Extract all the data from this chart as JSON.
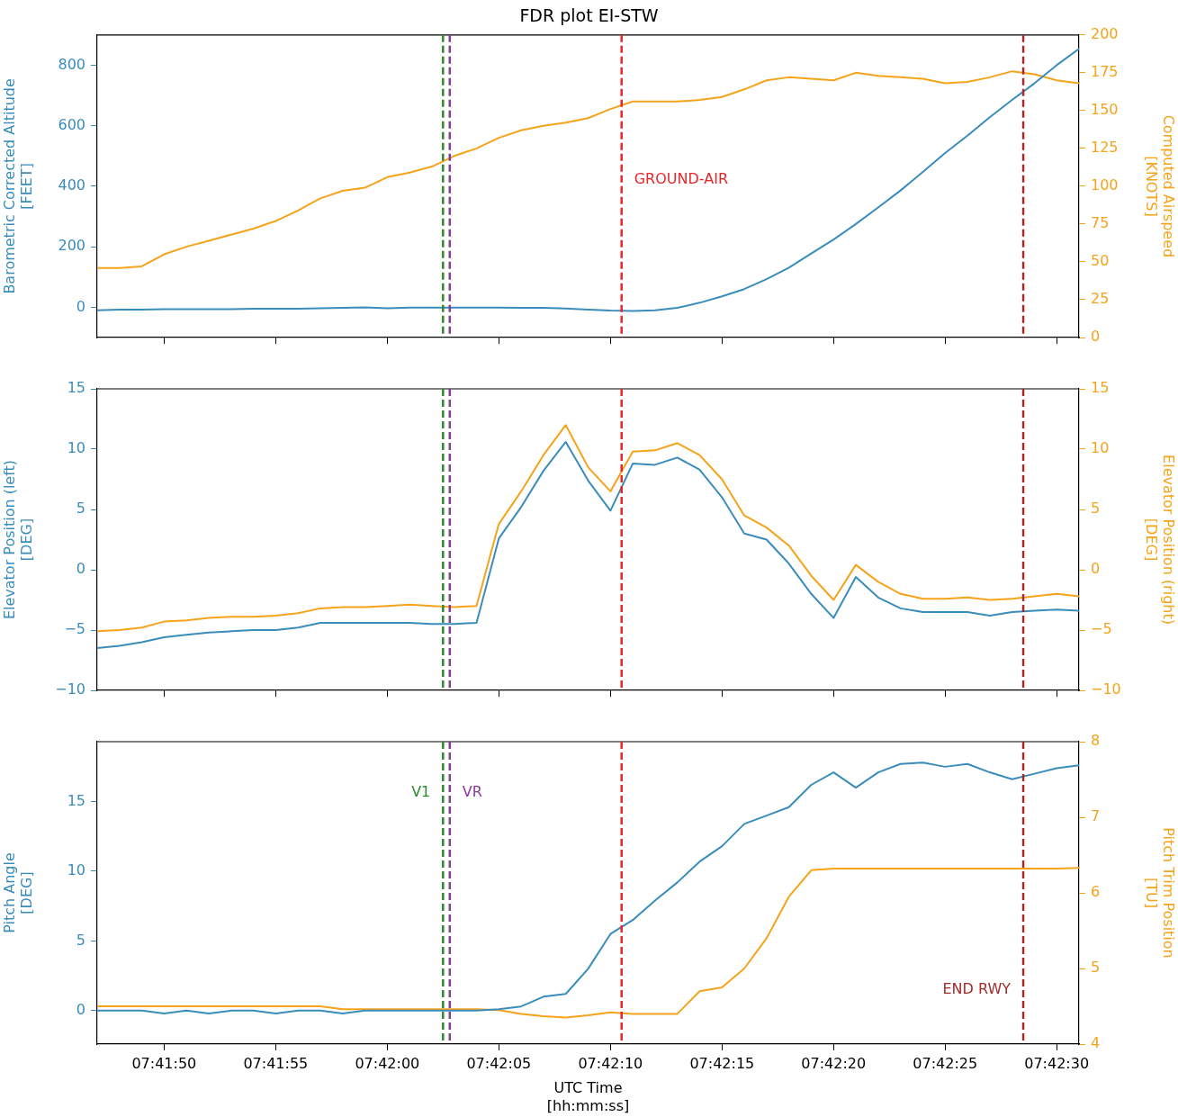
{
  "chart_data": [
    {
      "type": "line",
      "title": "FDR plot EI-STW",
      "ylabel": "Barometric Corrected Altitude\n[FEET]",
      "y2label": "Computed Airspeed\n[KNOTS]",
      "tick_labels": "y",
      "x": [
        7.696389,
        7.696667,
        7.696944,
        7.697222,
        7.6975,
        7.697778,
        7.698056,
        7.698333,
        7.698611,
        7.698889,
        7.699167,
        7.699444,
        7.699722,
        7.7,
        7.700278,
        7.700556,
        7.700833,
        7.701111,
        7.701389,
        7.701667,
        7.701944,
        7.702222,
        7.7025,
        7.702778,
        7.703056,
        7.703333,
        7.703611,
        7.703889,
        7.704167,
        7.704444,
        7.704722,
        7.705,
        7.705278,
        7.705556,
        7.705833,
        7.706111,
        7.706389,
        7.706667,
        7.706944,
        7.707222,
        7.7075,
        7.707778,
        7.708056,
        7.708333,
        7.708611
      ],
      "xlim": [
        7.696389,
        7.708611
      ],
      "xticks": [
        {
          "value": 7.697222,
          "label": null
        },
        {
          "value": 7.698611,
          "label": null
        },
        {
          "value": 7.7,
          "label": null
        },
        {
          "value": 7.701389,
          "label": null
        },
        {
          "value": 7.702778,
          "label": null
        },
        {
          "value": 7.704167,
          "label": null
        },
        {
          "value": 7.705556,
          "label": null
        },
        {
          "value": 7.706944,
          "label": null
        },
        {
          "value": 7.708333,
          "label": null
        }
      ],
      "ylim": [
        -100,
        900
      ],
      "yticks": [
        0,
        200,
        400,
        600,
        800
      ],
      "y2lim": [
        0,
        200
      ],
      "y2ticks": [
        0,
        25,
        50,
        75,
        100,
        125,
        150,
        175,
        200
      ],
      "series": [
        {
          "color": "#3a8dba",
          "values": [
            -10,
            -8,
            -8,
            -6,
            -6,
            -6,
            -6,
            -5,
            -5,
            -5,
            -3,
            -2,
            0,
            -3,
            -1,
            -1,
            -1,
            -1,
            -1,
            -2,
            -2,
            -4,
            -8,
            -11,
            -12,
            -10,
            -2,
            15,
            36,
            60,
            93,
            131,
            178,
            224,
            275,
            330,
            386,
            447,
            510,
            567,
            628,
            685,
            740,
            800,
            854
          ]
        },
        {
          "color": "#f5a31a",
          "axis": "y2",
          "values": [
            46,
            46,
            47,
            55,
            60,
            64,
            68,
            72,
            77,
            84,
            92,
            97,
            99,
            106,
            109,
            113,
            120,
            125,
            132,
            137,
            140,
            142,
            145,
            151,
            156,
            156,
            156,
            157,
            159,
            164,
            170,
            172,
            171,
            170,
            175,
            173,
            172,
            171,
            168,
            169,
            172,
            176,
            174,
            170,
            168
          ]
        }
      ],
      "ref_lines": [
        {
          "axis": "x",
          "value": 7.700694,
          "color": "#2e8b2e",
          "line_style": "dashed"
        },
        {
          "axis": "x",
          "value": 7.700778,
          "color": "#8b3a9a",
          "line_style": "dashed"
        },
        {
          "axis": "x",
          "value": 7.702917,
          "label": "GROUND-AIR",
          "color": "#e8262a",
          "line_style": "dashed"
        },
        {
          "axis": "x",
          "value": 7.707917,
          "color": "#a52a2a",
          "line_style": "dashed"
        }
      ]
    },
    {
      "type": "line",
      "ylabel": "Elevator Position (left)\n[DEG]",
      "y2label": "Elevator Position (right)\n[DEG]",
      "tick_labels": "y",
      "x": [
        7.696389,
        7.696667,
        7.696944,
        7.697222,
        7.6975,
        7.697778,
        7.698056,
        7.698333,
        7.698611,
        7.698889,
        7.699167,
        7.699444,
        7.699722,
        7.7,
        7.700278,
        7.700556,
        7.700833,
        7.701111,
        7.701389,
        7.701667,
        7.701944,
        7.702222,
        7.7025,
        7.702778,
        7.703056,
        7.703333,
        7.703611,
        7.703889,
        7.704167,
        7.704444,
        7.704722,
        7.705,
        7.705278,
        7.705556,
        7.705833,
        7.706111,
        7.706389,
        7.706667,
        7.706944,
        7.707222,
        7.7075,
        7.707778,
        7.708056,
        7.708333,
        7.708611
      ],
      "xlim": [
        7.696389,
        7.708611
      ],
      "xticks": [
        {
          "value": 7.697222,
          "label": null
        },
        {
          "value": 7.698611,
          "label": null
        },
        {
          "value": 7.7,
          "label": null
        },
        {
          "value": 7.701389,
          "label": null
        },
        {
          "value": 7.702778,
          "label": null
        },
        {
          "value": 7.704167,
          "label": null
        },
        {
          "value": 7.705556,
          "label": null
        },
        {
          "value": 7.706944,
          "label": null
        },
        {
          "value": 7.708333,
          "label": null
        }
      ],
      "ylim": [
        -10,
        15
      ],
      "yticks": [
        {
          "value": -10,
          "label": "−10"
        },
        {
          "value": -5,
          "label": "−5"
        },
        0,
        5,
        10,
        15
      ],
      "y2lim": [
        -10,
        15
      ],
      "y2ticks": [
        {
          "value": -10,
          "label": "−10"
        },
        {
          "value": -5,
          "label": "−5"
        },
        0,
        5,
        10,
        15
      ],
      "series": [
        {
          "color": "#3a8dba",
          "values": [
            -6.5,
            -6.3,
            -6.0,
            -5.6,
            -5.4,
            -5.2,
            -5.1,
            -5.0,
            -5.0,
            -4.8,
            -4.4,
            -4.4,
            -4.4,
            -4.4,
            -4.4,
            -4.5,
            -4.5,
            -4.4,
            2.6,
            5.2,
            8.2,
            10.6,
            7.4,
            4.9,
            8.8,
            8.7,
            9.3,
            8.3,
            6.0,
            3.0,
            2.5,
            0.5,
            -2.0,
            -4.0,
            -0.6,
            -2.3,
            -3.2,
            -3.5,
            -3.5,
            -3.5,
            -3.8,
            -3.5,
            -3.4,
            -3.3,
            -3.4
          ]
        },
        {
          "color": "#f5a31a",
          "axis": "y2",
          "values": [
            -5.1,
            -5.0,
            -4.8,
            -4.3,
            -4.2,
            -4.0,
            -3.9,
            -3.9,
            -3.8,
            -3.6,
            -3.2,
            -3.1,
            -3.1,
            -3.0,
            -2.9,
            -3.0,
            -3.1,
            -3.0,
            3.8,
            6.5,
            9.5,
            12.0,
            8.5,
            6.5,
            9.8,
            9.9,
            10.5,
            9.5,
            7.5,
            4.5,
            3.5,
            2.0,
            -0.5,
            -2.5,
            0.4,
            -1.0,
            -2.0,
            -2.4,
            -2.4,
            -2.3,
            -2.5,
            -2.4,
            -2.2,
            -2.0,
            -2.2
          ]
        }
      ],
      "ref_lines": [
        {
          "axis": "x",
          "value": 7.700694,
          "color": "#2e8b2e",
          "line_style": "dashed"
        },
        {
          "axis": "x",
          "value": 7.700778,
          "color": "#8b3a9a",
          "line_style": "dashed"
        },
        {
          "axis": "x",
          "value": 7.702917,
          "color": "#e8262a",
          "line_style": "dashed"
        },
        {
          "axis": "x",
          "value": 7.707917,
          "color": "#a52a2a",
          "line_style": "dashed"
        }
      ]
    },
    {
      "type": "line",
      "xlabel": "UTC Time\n[hh:mm:ss]",
      "ylabel": "Pitch Angle\n[DEG]",
      "y2label": "Pitch Trim Position\n[TU]",
      "x": [
        7.696389,
        7.696667,
        7.696944,
        7.697222,
        7.6975,
        7.697778,
        7.698056,
        7.698333,
        7.698611,
        7.698889,
        7.699167,
        7.699444,
        7.699722,
        7.7,
        7.700278,
        7.700556,
        7.700833,
        7.701111,
        7.701389,
        7.701667,
        7.701944,
        7.702222,
        7.7025,
        7.702778,
        7.703056,
        7.703333,
        7.703611,
        7.703889,
        7.704167,
        7.704444,
        7.704722,
        7.705,
        7.705278,
        7.705556,
        7.705833,
        7.706111,
        7.706389,
        7.706667,
        7.706944,
        7.707222,
        7.7075,
        7.707778,
        7.708056,
        7.708333,
        7.708611
      ],
      "xlim": [
        7.696389,
        7.708611
      ],
      "xticks": [
        {
          "value": 7.697222,
          "label": "07:41:50"
        },
        {
          "value": 7.698611,
          "label": "07:41:55"
        },
        {
          "value": 7.7,
          "label": "07:42:00"
        },
        {
          "value": 7.701389,
          "label": "07:42:05"
        },
        {
          "value": 7.702778,
          "label": "07:42:10"
        },
        {
          "value": 7.704167,
          "label": "07:42:15"
        },
        {
          "value": 7.705556,
          "label": "07:42:20"
        },
        {
          "value": 7.706944,
          "label": "07:42:25"
        },
        {
          "value": 7.708333,
          "label": "07:42:30"
        }
      ],
      "ylim": [
        -2.4,
        19.3
      ],
      "yticks": [
        0,
        5,
        10,
        15
      ],
      "y2lim": [
        4,
        8
      ],
      "y2ticks": [
        4,
        5,
        6,
        7,
        8
      ],
      "series": [
        {
          "color": "#3a8dba",
          "values": [
            0,
            0,
            0,
            -0.2,
            0,
            -0.2,
            0,
            0,
            -0.2,
            0,
            0,
            -0.2,
            0,
            0,
            0,
            0,
            0,
            0,
            0.1,
            0.3,
            1.0,
            1.2,
            3.0,
            5.5,
            6.5,
            7.9,
            9.2,
            10.7,
            11.8,
            13.4,
            14.0,
            14.6,
            16.2,
            17.1,
            16.0,
            17.1,
            17.7,
            17.8,
            17.5,
            17.7,
            17.1,
            16.6,
            17.0,
            17.4,
            17.6
          ]
        },
        {
          "color": "#f5a31a",
          "axis": "y2",
          "values": [
            4.5,
            4.5,
            4.5,
            4.5,
            4.5,
            4.5,
            4.5,
            4.5,
            4.5,
            4.5,
            4.5,
            4.46,
            4.46,
            4.46,
            4.46,
            4.46,
            4.46,
            4.46,
            4.45,
            4.4,
            4.37,
            4.35,
            4.38,
            4.42,
            4.4,
            4.4,
            4.4,
            4.7,
            4.75,
            5.0,
            5.4,
            5.95,
            6.3,
            6.32,
            6.32,
            6.32,
            6.32,
            6.32,
            6.32,
            6.32,
            6.32,
            6.32,
            6.32,
            6.32,
            6.33
          ]
        }
      ],
      "ref_lines": [
        {
          "axis": "x",
          "value": 7.700694,
          "label": "V1",
          "color": "#2e8b2e",
          "line_style": "dashed"
        },
        {
          "axis": "x",
          "value": 7.700778,
          "label": "VR",
          "color": "#8b3a9a",
          "line_style": "dashed"
        },
        {
          "axis": "x",
          "value": 7.702917,
          "color": "#e8262a",
          "line_style": "dashed"
        },
        {
          "axis": "x",
          "value": 7.707917,
          "label": "END RWY",
          "color": "#a52a2a",
          "line_style": "dashed"
        }
      ]
    }
  ]
}
